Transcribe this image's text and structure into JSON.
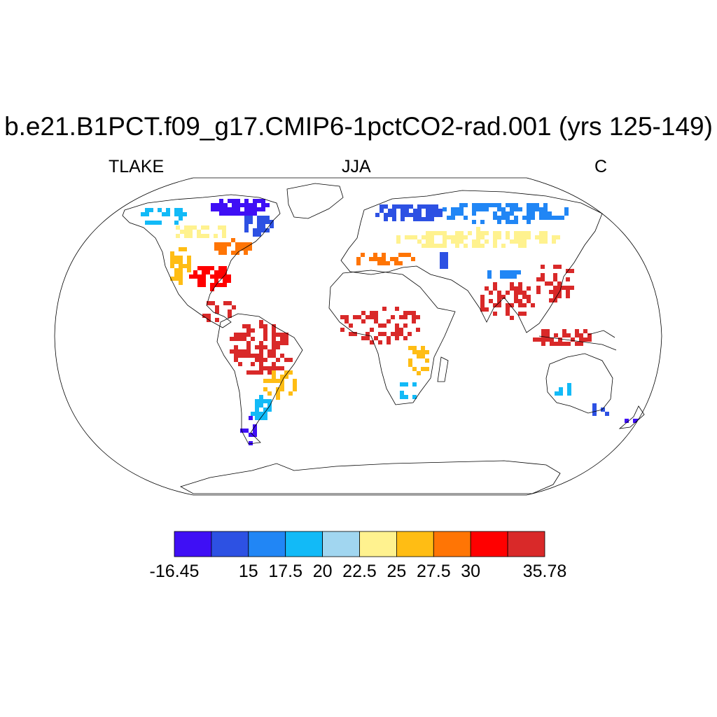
{
  "title": "b.e21.B1PCT.f09_g17.CMIP6-1pctCO2-rad.001 (yrs 125-149)",
  "subtitle": {
    "left": "TLAKE",
    "center": "JJA",
    "right": "C"
  },
  "colorbar": {
    "colors": [
      "#3f0ff5",
      "#2d51e3",
      "#2186f5",
      "#12baf7",
      "#a1d6f0",
      "#fff28f",
      "#ffbd14",
      "#ff7505",
      "#ff0000",
      "#d92929"
    ],
    "labels": [
      "-16.45",
      "15",
      "17.5",
      "20",
      "22.5",
      "25",
      "27.5",
      "30",
      "35.78"
    ],
    "label_boundaries": [
      0,
      2,
      3,
      4,
      5,
      6,
      7,
      8,
      10
    ]
  },
  "map_data": {
    "projection": "Robinson",
    "variable": "TLAKE",
    "season": "JJA",
    "units": "C",
    "regions": [
      {
        "name": "Alaska / NW Canada",
        "color_class": 3
      },
      {
        "name": "Canadian Arctic",
        "color_class": 0
      },
      {
        "name": "Hudson Bay region",
        "color_class": 1
      },
      {
        "name": "Central Canada",
        "color_class": 5
      },
      {
        "name": "Great Lakes",
        "color_class": 7
      },
      {
        "name": "Eastern US",
        "color_class": 8
      },
      {
        "name": "Western US",
        "color_class": 6
      },
      {
        "name": "Mexico / Central America",
        "color_class": 9
      },
      {
        "name": "Amazon",
        "color_class": 9
      },
      {
        "name": "Southern Brazil",
        "color_class": 6
      },
      {
        "name": "Argentina",
        "color_class": 3
      },
      {
        "name": "Patagonia",
        "color_class": 0
      },
      {
        "name": "Scandinavia / Northern Russia",
        "color_class": 1
      },
      {
        "name": "Siberia",
        "color_class": 2
      },
      {
        "name": "Eastern Europe / Central Asia",
        "color_class": 5
      },
      {
        "name": "Mediterranean",
        "color_class": 7
      },
      {
        "name": "Caspian Sea",
        "color_class": 1
      },
      {
        "name": "Tibetan Plateau",
        "color_class": 2
      },
      {
        "name": "India",
        "color_class": 9
      },
      {
        "name": "China",
        "color_class": 9
      },
      {
        "name": "Southeast Asia",
        "color_class": 9
      },
      {
        "name": "Sahel / Central Africa",
        "color_class": 9
      },
      {
        "name": "East Africa lakes",
        "color_class": 6
      },
      {
        "name": "Southern Africa",
        "color_class": 3
      },
      {
        "name": "Southwest Australia",
        "color_class": 3
      },
      {
        "name": "Southeast Australia",
        "color_class": 1
      },
      {
        "name": "New Zealand",
        "color_class": 0
      }
    ]
  }
}
